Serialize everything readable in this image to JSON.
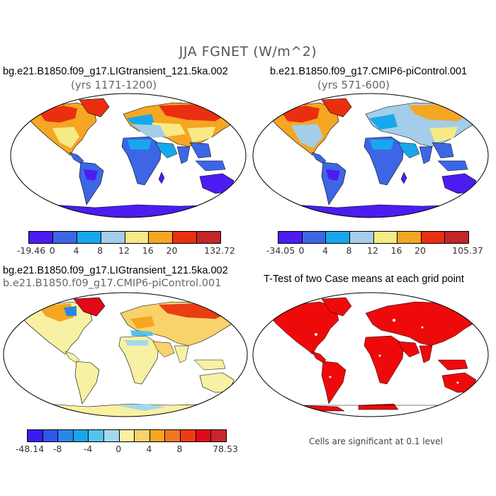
{
  "title": "JJA FGNET (W/m^2)",
  "panels": [
    {
      "title": "bg.e21.B1850.f09_g17.LIGtransient_121.5ka.002",
      "subtitle": "(yrs 1171-1200)"
    },
    {
      "title": "b.e21.B1850.f09_g17.CMIP6-piControl.001",
      "subtitle": "(yrs 571-600)"
    },
    {
      "title": "bg.e21.B1850.f09_g17.LIGtransient_121.5ka.002",
      "subtitle": "b.e21.B1850.f09_g17.CMIP6-piControl.001"
    },
    {
      "title": "T-Test of two Case means at each grid point",
      "subtitle": ""
    }
  ],
  "colorbars": [
    {
      "colors": [
        "#4c1cf0",
        "#3d66e6",
        "#18a7ec",
        "#a3cde9",
        "#f6ea86",
        "#f5a623",
        "#ea2f10",
        "#c4262b"
      ],
      "labels": [
        "-19.46",
        "0",
        "4",
        "8",
        "12",
        "16",
        "20",
        "132.72"
      ]
    },
    {
      "colors": [
        "#4c1cf0",
        "#3d66e6",
        "#18a7ec",
        "#a3cde9",
        "#f6ea86",
        "#f5a623",
        "#ea2f10",
        "#c4262b"
      ],
      "labels": [
        "-34.05",
        "0",
        "4",
        "8",
        "12",
        "16",
        "20",
        "105.37"
      ]
    },
    {
      "colors": [
        "#3a1cf0",
        "#3255ec",
        "#2c86e8",
        "#18a7ec",
        "#57c1ee",
        "#a3d9ee",
        "#f8f1a3",
        "#f8d26a",
        "#f5a623",
        "#f07622",
        "#ea3d12",
        "#e0081a",
        "#c8262b"
      ],
      "labels": [
        "-48.14",
        "-8",
        "-4",
        "0",
        "4",
        "8",
        "78.53"
      ]
    }
  ],
  "note": "Cells are significant at 0.1 level"
}
